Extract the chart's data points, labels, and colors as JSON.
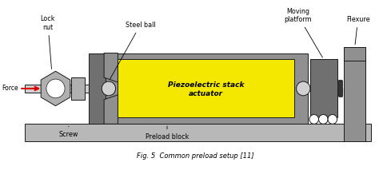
{
  "fig_width": 4.74,
  "fig_height": 2.13,
  "dpi": 100,
  "bg_color": "#ffffff",
  "caption": "Fig. 5  Common preload setup [11]",
  "labels": {
    "force": "Force",
    "lock_nut": "Lock\nnut",
    "steel_ball": "Steel ball",
    "screw": "Screw",
    "preload_block": "Preload block",
    "piezo_text": "Piezoelectric stack\nactuator",
    "moving_platform": "Moving\nplatform",
    "flexure": "Flexure"
  },
  "colors": {
    "base_plate": "#b8b8b8",
    "med_gray": "#909090",
    "dark_gray": "#707070",
    "light_gray": "#d0d0d0",
    "piezo_yellow": "#f5e800",
    "white": "#ffffff",
    "arrow_red": "#dd0000",
    "outline": "#1a1a1a",
    "spring_color": "#333333",
    "nut_gray": "#b0b0b0",
    "bg": "#ffffff"
  }
}
